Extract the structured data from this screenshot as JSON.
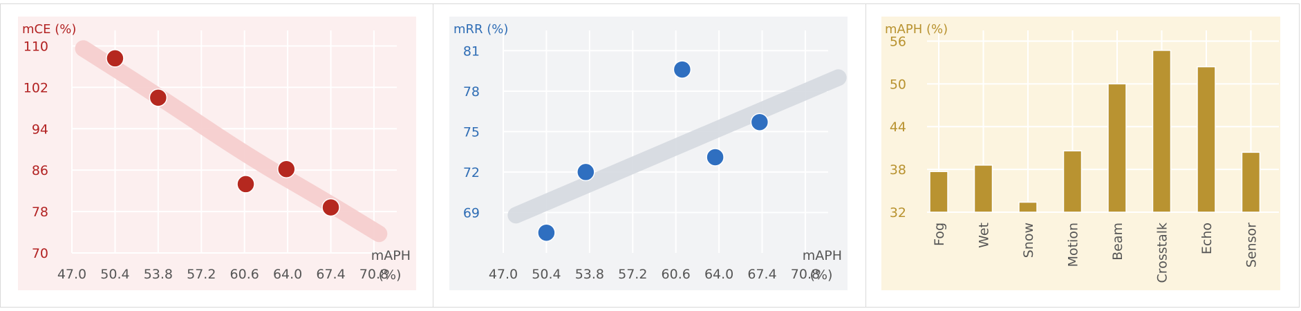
{
  "chart_data": [
    {
      "type": "scatter",
      "ylabel": "mCE (%)",
      "xlabel_line1": "mAPH",
      "xlabel_line2": "(%)",
      "x_ticks": [
        47.0,
        50.4,
        53.8,
        57.2,
        60.6,
        64.0,
        67.4,
        70.8
      ],
      "y_ticks": [
        70,
        78,
        86,
        94,
        102,
        110
      ],
      "xlim": [
        47.0,
        72.6
      ],
      "ylim": [
        70,
        113
      ],
      "points": [
        {
          "x": 50.4,
          "y": 107.6
        },
        {
          "x": 53.8,
          "y": 100.0
        },
        {
          "x": 60.7,
          "y": 83.3
        },
        {
          "x": 63.9,
          "y": 86.2
        },
        {
          "x": 67.4,
          "y": 78.8
        }
      ],
      "trend": [
        [
          47.9,
          109.5
        ],
        [
          54.0,
          100.0
        ],
        [
          61.0,
          88.5
        ],
        [
          67.0,
          80.0
        ],
        [
          71.2,
          73.7
        ]
      ],
      "background": "#fcefef",
      "label_color": "#b22222",
      "marker_color": "#b5281f",
      "trend_color": "#f5cccc",
      "grid": true
    },
    {
      "type": "scatter",
      "ylabel": "mRR (%)",
      "xlabel_line1": "mAPH",
      "xlabel_line2": "(%)",
      "x_ticks": [
        47.0,
        50.4,
        53.8,
        57.2,
        60.6,
        64.0,
        67.4,
        70.8
      ],
      "y_ticks": [
        69,
        72,
        75,
        78,
        81
      ],
      "xlim": [
        47.0,
        72.6
      ],
      "ylim": [
        66,
        82.5
      ],
      "points": [
        {
          "x": 50.4,
          "y": 67.5
        },
        {
          "x": 53.5,
          "y": 72.0
        },
        {
          "x": 61.1,
          "y": 79.6
        },
        {
          "x": 63.7,
          "y": 73.1
        },
        {
          "x": 67.2,
          "y": 75.7
        }
      ],
      "trend": [
        [
          48.0,
          68.8
        ],
        [
          73.4,
          79.0
        ]
      ],
      "background": "#f2f3f5",
      "label_color": "#2f6db5",
      "marker_color": "#2f6fc0",
      "trend_color": "#d5d9e0",
      "grid": true
    },
    {
      "type": "bar",
      "ylabel": "mAPH (%)",
      "categories": [
        "Fog",
        "Wet",
        "Snow",
        "Motion",
        "Beam",
        "Crosstalk",
        "Echo",
        "Sensor"
      ],
      "values": [
        37.7,
        38.6,
        33.4,
        40.6,
        50.0,
        54.7,
        52.4,
        40.4
      ],
      "y_ticks": [
        32,
        38,
        44,
        50,
        56
      ],
      "ylim": [
        32,
        57.5
      ],
      "background": "#fcf4df",
      "label_color": "#b8922f",
      "bar_color": "#b99331",
      "grid": true
    }
  ]
}
